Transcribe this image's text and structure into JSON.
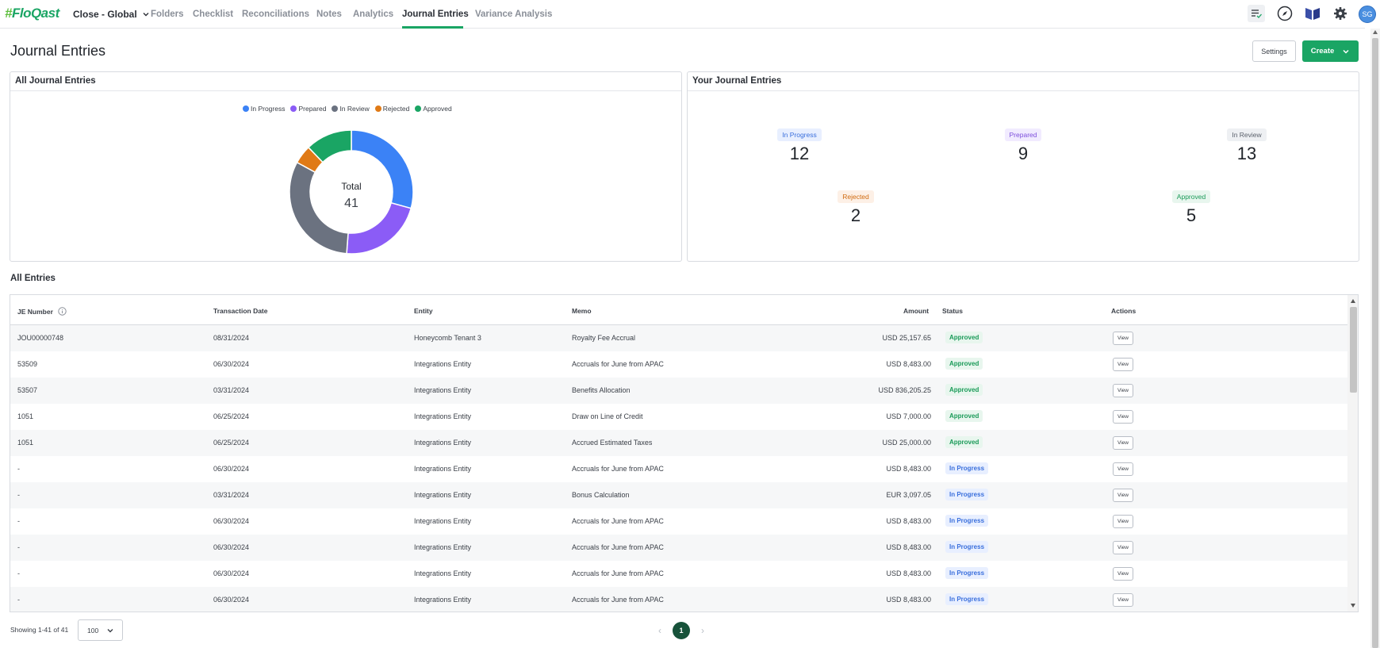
{
  "app": {
    "logo_hash": "#",
    "logo_text": "FloQast",
    "workspace": "Close - Global"
  },
  "nav": {
    "items": [
      "Folders",
      "Checklist",
      "Reconciliations",
      "Notes",
      "Analytics",
      "Journal Entries",
      "Variance Analysis"
    ],
    "active": "Journal Entries"
  },
  "user": {
    "initials": "SG"
  },
  "page": {
    "title": "Journal Entries",
    "settings_label": "Settings",
    "create_label": "Create"
  },
  "all_je": {
    "title": "All Journal Entries",
    "total_label": "Total",
    "total_value": "41",
    "legend": [
      {
        "label": "In Progress",
        "color": "#3b82f6"
      },
      {
        "label": "Prepared",
        "color": "#8b5cf6"
      },
      {
        "label": "In Review",
        "color": "#6b7280"
      },
      {
        "label": "Rejected",
        "color": "#e07a16"
      },
      {
        "label": "Approved",
        "color": "#1aa564"
      }
    ]
  },
  "chart_data": {
    "type": "pie",
    "title": "All Journal Entries",
    "categories": [
      "In Progress",
      "Prepared",
      "In Review",
      "Rejected",
      "Approved"
    ],
    "values": [
      12,
      9,
      13,
      2,
      5
    ],
    "colors": [
      "#3b82f6",
      "#8b5cf6",
      "#6b7280",
      "#e07a16",
      "#1aa564"
    ],
    "center_label": "Total",
    "center_value": 41
  },
  "your_je": {
    "title": "Your Journal Entries",
    "stats": [
      {
        "label": "In Progress",
        "value": "12"
      },
      {
        "label": "Prepared",
        "value": "9"
      },
      {
        "label": "In Review",
        "value": "13"
      },
      {
        "label": "Rejected",
        "value": "2"
      },
      {
        "label": "Approved",
        "value": "5"
      }
    ]
  },
  "entries": {
    "title": "All Entries",
    "columns": [
      "JE Number",
      "Transaction Date",
      "Entity",
      "Memo",
      "Amount",
      "Status",
      "Actions"
    ],
    "view_label": "View",
    "rows": [
      {
        "je": "JOU00000748",
        "date": "08/31/2024",
        "entity": "Honeycomb Tenant 3",
        "memo": "Royalty Fee Accrual",
        "amount": "USD 25,157.65",
        "status": "Approved"
      },
      {
        "je": "53509",
        "date": "06/30/2024",
        "entity": "Integrations Entity",
        "memo": "Accruals for June from APAC",
        "amount": "USD 8,483.00",
        "status": "Approved"
      },
      {
        "je": "53507",
        "date": "03/31/2024",
        "entity": "Integrations Entity",
        "memo": "Benefits Allocation",
        "amount": "USD 836,205.25",
        "status": "Approved"
      },
      {
        "je": "1051",
        "date": "06/25/2024",
        "entity": "Integrations Entity",
        "memo": "Draw on Line of Credit",
        "amount": "USD 7,000.00",
        "status": "Approved"
      },
      {
        "je": "1051",
        "date": "06/25/2024",
        "entity": "Integrations Entity",
        "memo": "Accrued Estimated Taxes",
        "amount": "USD 25,000.00",
        "status": "Approved"
      },
      {
        "je": "-",
        "date": "06/30/2024",
        "entity": "Integrations Entity",
        "memo": "Accruals for June from APAC",
        "amount": "USD 8,483.00",
        "status": "In Progress"
      },
      {
        "je": "-",
        "date": "03/31/2024",
        "entity": "Integrations Entity",
        "memo": "Bonus Calculation",
        "amount": "EUR 3,097.05",
        "status": "In Progress"
      },
      {
        "je": "-",
        "date": "06/30/2024",
        "entity": "Integrations Entity",
        "memo": "Accruals for June from APAC",
        "amount": "USD 8,483.00",
        "status": "In Progress"
      },
      {
        "je": "-",
        "date": "06/30/2024",
        "entity": "Integrations Entity",
        "memo": "Accruals for June from APAC",
        "amount": "USD 8,483.00",
        "status": "In Progress"
      },
      {
        "je": "-",
        "date": "06/30/2024",
        "entity": "Integrations Entity",
        "memo": "Accruals for June from APAC",
        "amount": "USD 8,483.00",
        "status": "In Progress"
      },
      {
        "je": "-",
        "date": "06/30/2024",
        "entity": "Integrations Entity",
        "memo": "Accruals for June from APAC",
        "amount": "USD 8,483.00",
        "status": "In Progress"
      }
    ]
  },
  "footer": {
    "showing": "Showing 1-41 of 41",
    "page_size": "100",
    "current_page": "1"
  }
}
